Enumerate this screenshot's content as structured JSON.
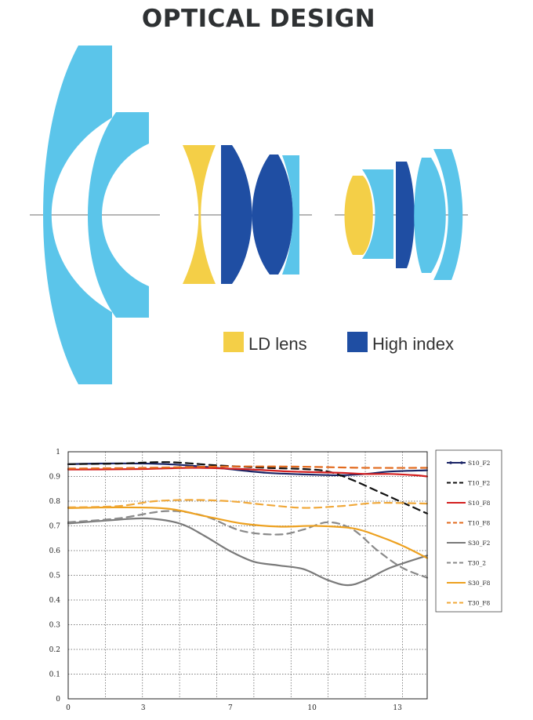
{
  "title": "OPTICAL DESIGN",
  "lens_legend": {
    "ld_label": "LD lens",
    "hi_label": "High index"
  },
  "colors": {
    "light_blue": "#5bc5ea",
    "yellow": "#f4cf47",
    "dark_blue": "#1f4ea3",
    "axis": "#8a8a8a"
  },
  "chart_data": {
    "type": "line",
    "title": "",
    "xlabel": "",
    "ylabel": "",
    "xlim": [
      0,
      14.5
    ],
    "ylim": [
      0,
      1
    ],
    "x_ticks": [
      "0",
      "3",
      "7",
      "10",
      "13"
    ],
    "x_tick_values": [
      0,
      3.03,
      6.55,
      9.85,
      13.3
    ],
    "y_ticks": [
      "0",
      "0.1",
      "0.2",
      "0.3",
      "0.4",
      "0.5",
      "0.6",
      "0.7",
      "0.8",
      "0.9",
      "1"
    ],
    "grid": true,
    "legend_position": "right",
    "series": [
      {
        "name": "S10_F2",
        "color": "#1a2466",
        "dash": false,
        "marker": true,
        "x": [
          0,
          2,
          4,
          6,
          8,
          10,
          11,
          12,
          13,
          14.5
        ],
        "y": [
          0.95,
          0.953,
          0.95,
          0.935,
          0.915,
          0.907,
          0.905,
          0.91,
          0.92,
          0.925
        ]
      },
      {
        "name": "T10_F2",
        "color": "#111111",
        "dash": true,
        "marker": false,
        "x": [
          0,
          2,
          4,
          6,
          8,
          9.5,
          10.5,
          11.5,
          12.5,
          13.5,
          14.5
        ],
        "y": [
          0.95,
          0.952,
          0.958,
          0.945,
          0.935,
          0.93,
          0.92,
          0.885,
          0.84,
          0.795,
          0.75
        ]
      },
      {
        "name": "S10_F8",
        "color": "#d42020",
        "dash": false,
        "marker": false,
        "x": [
          0,
          3,
          5,
          7,
          9,
          11,
          12,
          13,
          14,
          14.5
        ],
        "y": [
          0.928,
          0.93,
          0.935,
          0.93,
          0.92,
          0.915,
          0.91,
          0.91,
          0.905,
          0.9
        ]
      },
      {
        "name": "T10_F8",
        "color": "#e26a1e",
        "dash": true,
        "marker": false,
        "x": [
          0,
          3,
          6,
          9,
          12,
          14.5
        ],
        "y": [
          0.932,
          0.935,
          0.94,
          0.94,
          0.935,
          0.935
        ]
      },
      {
        "name": "S30_F2",
        "color": "#7a7a7a",
        "dash": false,
        "marker": false,
        "x": [
          0,
          2,
          3.2,
          4.5,
          5.5,
          6.5,
          7.5,
          8.5,
          9.5,
          10.5,
          11.3,
          12,
          13,
          14.5
        ],
        "y": [
          0.71,
          0.725,
          0.73,
          0.71,
          0.66,
          0.6,
          0.555,
          0.54,
          0.525,
          0.48,
          0.46,
          0.48,
          0.53,
          0.58
        ]
      },
      {
        "name": "T30_2",
        "color": "#8a8a8a",
        "dash": true,
        "marker": false,
        "x": [
          0,
          2,
          4,
          5.5,
          7,
          8.5,
          9.5,
          10.5,
          11.5,
          12.5,
          13.5,
          14.5
        ],
        "y": [
          0.715,
          0.73,
          0.76,
          0.74,
          0.68,
          0.665,
          0.685,
          0.715,
          0.685,
          0.6,
          0.53,
          0.49
        ]
      },
      {
        "name": "S30_F8",
        "color": "#eda120",
        "dash": false,
        "marker": false,
        "x": [
          0,
          2,
          4,
          5.5,
          7,
          8.5,
          10,
          11.5,
          12.5,
          13.5,
          14.5
        ],
        "y": [
          0.772,
          0.775,
          0.77,
          0.74,
          0.71,
          0.697,
          0.7,
          0.69,
          0.66,
          0.62,
          0.57
        ]
      },
      {
        "name": "T30_F8",
        "color": "#f0a83a",
        "dash": true,
        "marker": false,
        "x": [
          0,
          2,
          3.5,
          5,
          6.5,
          8,
          9.5,
          11,
          12.5,
          14.5
        ],
        "y": [
          0.775,
          0.78,
          0.8,
          0.805,
          0.8,
          0.785,
          0.773,
          0.78,
          0.793,
          0.79
        ]
      }
    ]
  }
}
